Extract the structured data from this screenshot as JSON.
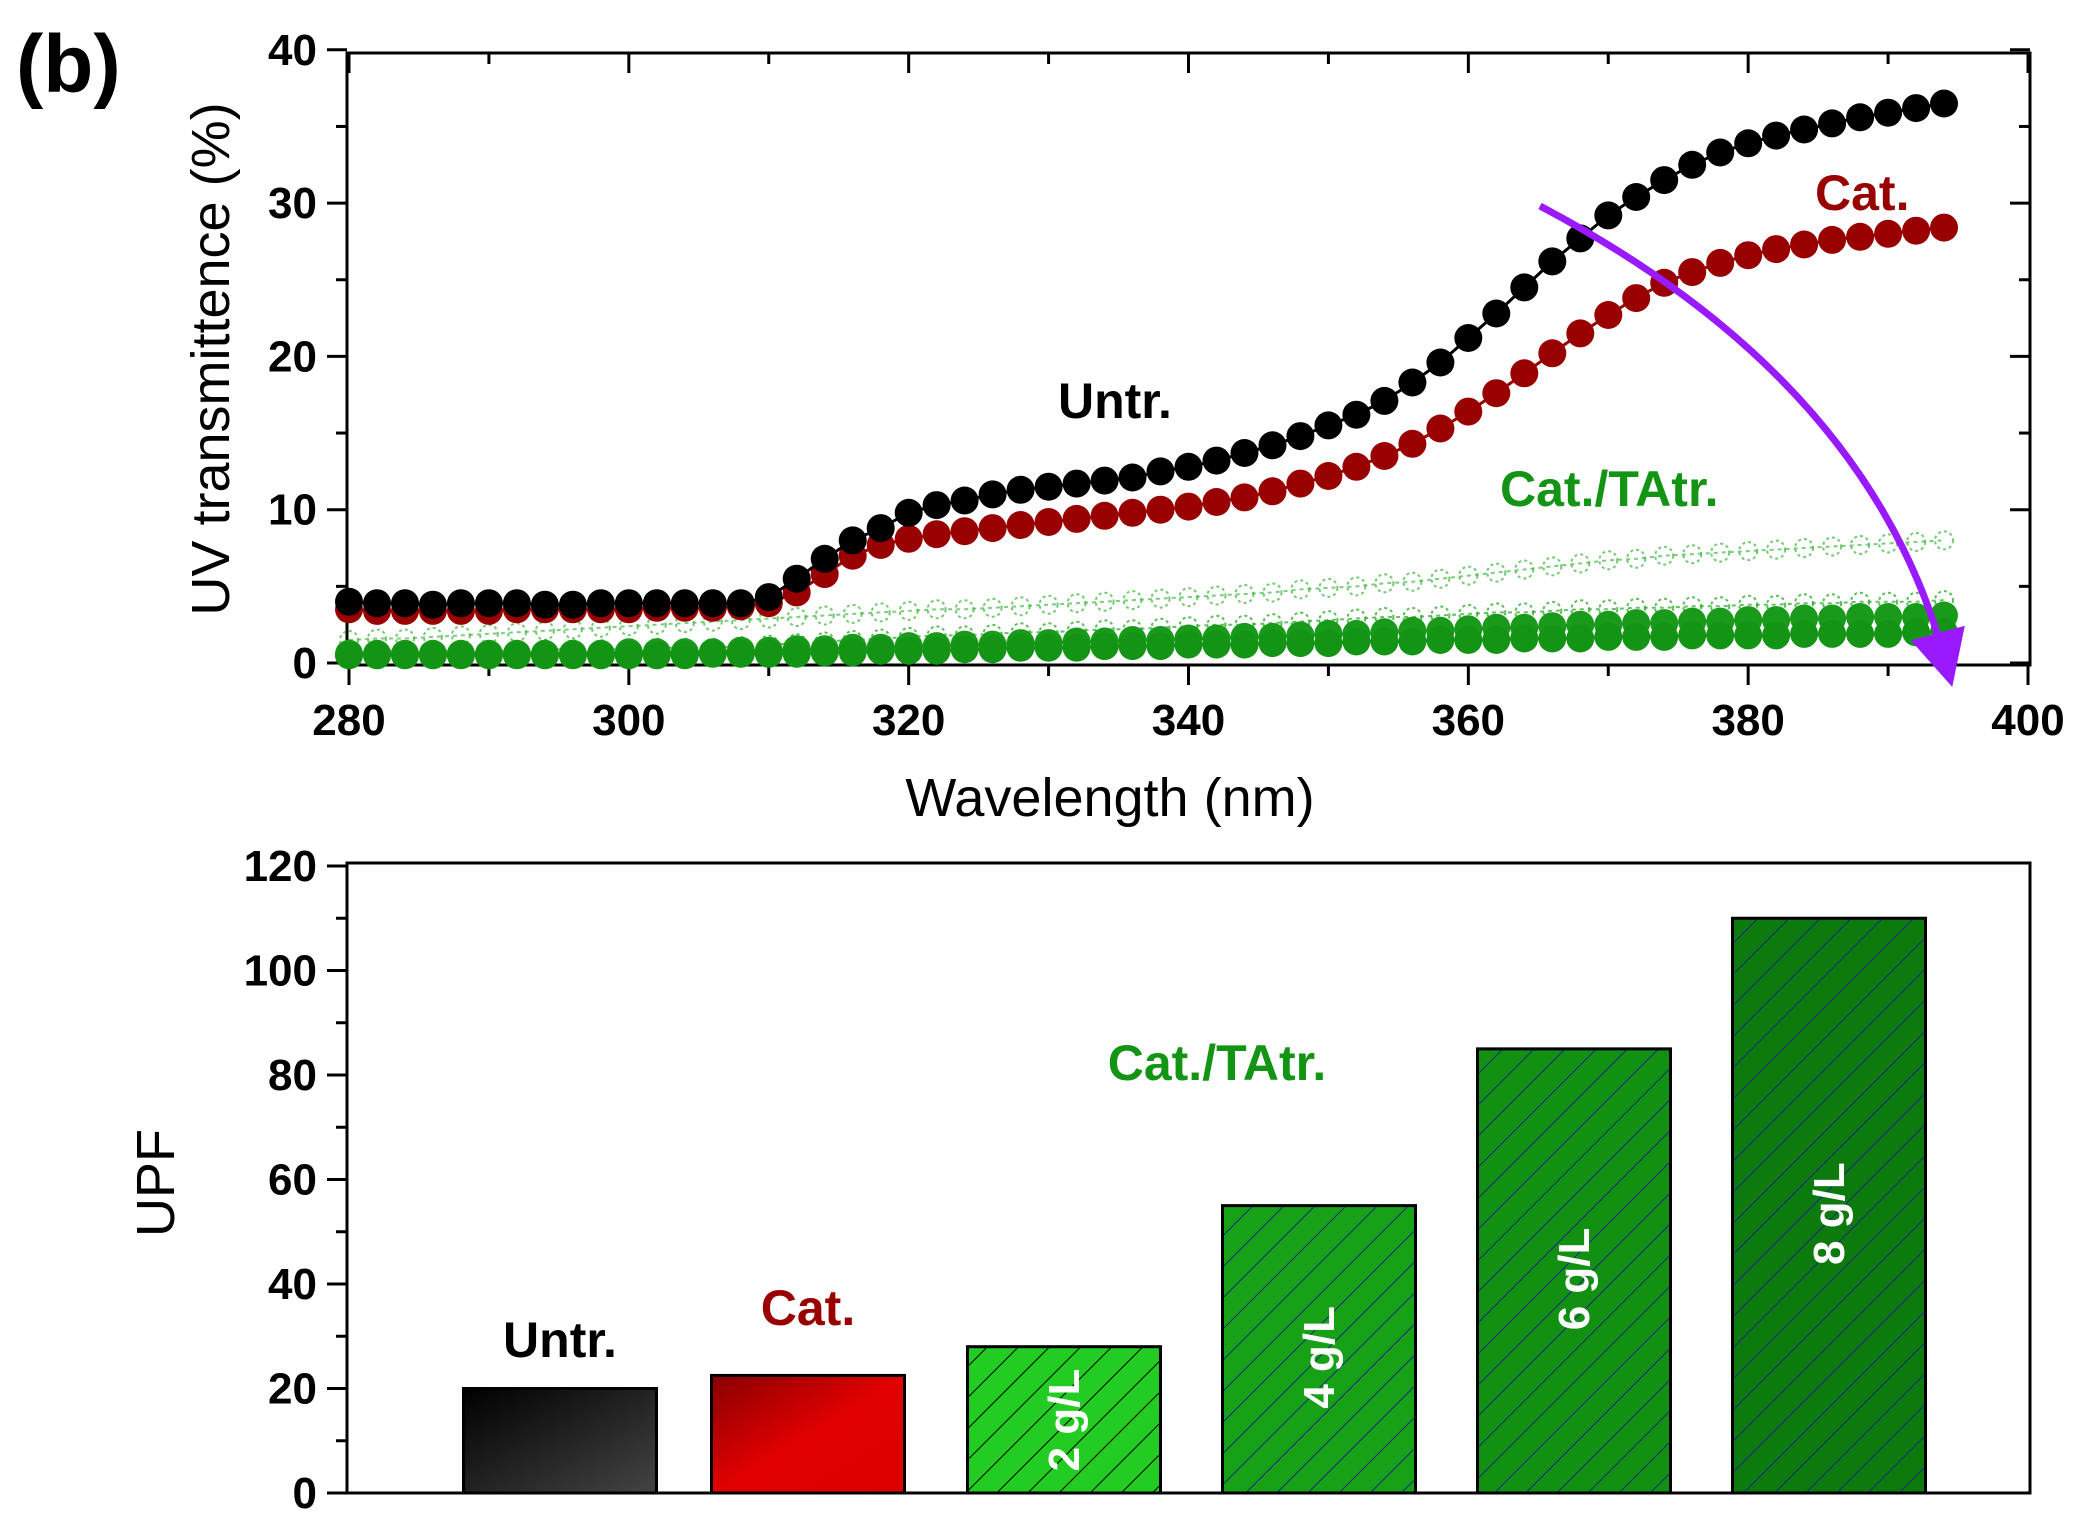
{
  "panel_label": "(b)",
  "chart_data": [
    {
      "type": "scatter",
      "xlabel": "Wavelength (nm)",
      "ylabel": "UV transmittence (%)",
      "xlim": [
        280,
        400
      ],
      "ylim": [
        0,
        40
      ],
      "xticks": [
        280,
        300,
        320,
        340,
        360,
        380,
        400
      ],
      "yticks": [
        0,
        10,
        20,
        30,
        40
      ],
      "series": [
        {
          "name": "Untr.",
          "color": "#000000",
          "x_start": 280,
          "x_step": 2,
          "values": [
            4.0,
            3.9,
            3.9,
            3.8,
            3.9,
            3.9,
            3.9,
            3.8,
            3.8,
            3.9,
            3.9,
            3.9,
            3.9,
            3.9,
            3.9,
            4.3,
            5.5,
            6.8,
            8.0,
            8.8,
            9.8,
            10.3,
            10.6,
            11.0,
            11.3,
            11.5,
            11.7,
            11.9,
            12.1,
            12.5,
            12.8,
            13.2,
            13.7,
            14.2,
            14.8,
            15.5,
            16.2,
            17.1,
            18.3,
            19.6,
            21.2,
            22.8,
            24.5,
            26.2,
            27.7,
            29.2,
            30.4,
            31.5,
            32.5,
            33.3,
            33.9,
            34.4,
            34.8,
            35.2,
            35.6,
            35.9,
            36.2,
            36.5
          ]
        },
        {
          "name": "Cat.",
          "color": "#990000",
          "x_start": 280,
          "x_step": 2,
          "values": [
            3.5,
            3.4,
            3.4,
            3.4,
            3.4,
            3.4,
            3.5,
            3.5,
            3.5,
            3.5,
            3.5,
            3.6,
            3.6,
            3.6,
            3.7,
            3.9,
            4.6,
            5.8,
            7.0,
            7.7,
            8.1,
            8.4,
            8.6,
            8.8,
            9.0,
            9.2,
            9.4,
            9.6,
            9.8,
            10.0,
            10.2,
            10.5,
            10.8,
            11.2,
            11.7,
            12.2,
            12.8,
            13.5,
            14.3,
            15.3,
            16.4,
            17.6,
            18.9,
            20.2,
            21.5,
            22.7,
            23.8,
            24.8,
            25.5,
            26.1,
            26.6,
            27.0,
            27.3,
            27.6,
            27.8,
            28.0,
            28.2,
            28.4
          ]
        },
        {
          "name": "Cat./TAtr. 8 g/L",
          "color": "#149414",
          "x_start": 280,
          "x_step": 2,
          "values": [
            0.5,
            0.5,
            0.5,
            0.5,
            0.5,
            0.5,
            0.5,
            0.5,
            0.5,
            0.5,
            0.5,
            0.5,
            0.5,
            0.6,
            0.6,
            0.6,
            0.6,
            0.7,
            0.7,
            0.8,
            0.8,
            0.8,
            0.9,
            0.9,
            1.0,
            1.0,
            1.0,
            1.1,
            1.1,
            1.1,
            1.2,
            1.2,
            1.2,
            1.3,
            1.3,
            1.3,
            1.4,
            1.4,
            1.4,
            1.5,
            1.5,
            1.5,
            1.6,
            1.6,
            1.6,
            1.7,
            1.7,
            1.7,
            1.8,
            1.8,
            1.8,
            1.8,
            1.9,
            1.9,
            1.9,
            1.9,
            2.0,
            2.0
          ]
        },
        {
          "name": "Cat./TAtr. 6 g/L",
          "color": "#1a9a1a",
          "x_start": 280,
          "x_step": 2,
          "values": [
            0.6,
            0.6,
            0.6,
            0.6,
            0.6,
            0.6,
            0.6,
            0.6,
            0.6,
            0.6,
            0.7,
            0.7,
            0.7,
            0.7,
            0.8,
            0.8,
            0.9,
            0.9,
            1.0,
            1.0,
            1.1,
            1.1,
            1.2,
            1.2,
            1.3,
            1.3,
            1.4,
            1.4,
            1.5,
            1.5,
            1.6,
            1.6,
            1.7,
            1.7,
            1.8,
            1.9,
            1.9,
            2.0,
            2.1,
            2.1,
            2.2,
            2.3,
            2.3,
            2.4,
            2.5,
            2.5,
            2.6,
            2.6,
            2.7,
            2.7,
            2.8,
            2.8,
            2.9,
            2.9,
            3.0,
            3.0,
            3.0,
            3.1
          ]
        },
        {
          "name": "Cat./TAtr. 4 g/L",
          "color": "#22a822",
          "x_start": 280,
          "x_step": 2,
          "values": [
            0.8,
            0.8,
            0.8,
            0.8,
            0.8,
            0.8,
            0.8,
            0.9,
            0.9,
            0.9,
            0.9,
            1.0,
            1.0,
            1.0,
            1.1,
            1.2,
            1.3,
            1.4,
            1.5,
            1.6,
            1.7,
            1.8,
            1.8,
            1.9,
            2.0,
            2.0,
            2.1,
            2.2,
            2.2,
            2.3,
            2.4,
            2.5,
            2.5,
            2.6,
            2.7,
            2.8,
            2.9,
            3.0,
            3.0,
            3.1,
            3.2,
            3.3,
            3.3,
            3.4,
            3.5,
            3.5,
            3.6,
            3.6,
            3.7,
            3.7,
            3.8,
            3.8,
            3.9,
            3.9,
            4.0,
            4.0,
            4.0,
            4.1
          ]
        },
        {
          "name": "Cat./TAtr. 2 g/L",
          "color": "#44b844",
          "x_start": 280,
          "x_step": 2,
          "values": [
            1.5,
            1.6,
            1.6,
            1.7,
            1.8,
            1.9,
            2.0,
            2.1,
            2.2,
            2.3,
            2.4,
            2.5,
            2.6,
            2.7,
            2.8,
            2.9,
            3.0,
            3.1,
            3.2,
            3.3,
            3.4,
            3.5,
            3.5,
            3.6,
            3.7,
            3.8,
            3.9,
            4.0,
            4.1,
            4.2,
            4.3,
            4.4,
            4.5,
            4.6,
            4.8,
            4.9,
            5.0,
            5.2,
            5.3,
            5.5,
            5.7,
            5.9,
            6.1,
            6.3,
            6.5,
            6.7,
            6.8,
            7.0,
            7.1,
            7.2,
            7.3,
            7.4,
            7.5,
            7.6,
            7.7,
            7.8,
            7.9,
            8.0
          ]
        }
      ],
      "annotations": {
        "untr": {
          "text": "Untr.",
          "color": "#000000"
        },
        "cat": {
          "text": "Cat.",
          "color": "#990000"
        },
        "cattatr": {
          "text": "Cat./TAtr.",
          "color": "#149414"
        },
        "arrow_color": "#9a1aff"
      }
    },
    {
      "type": "bar",
      "ylabel": "UPF",
      "ylim": [
        0,
        120
      ],
      "yticks": [
        0,
        20,
        40,
        60,
        80,
        100,
        120
      ],
      "categories": [
        "Untr.",
        "Cat.",
        "2 g/L",
        "4 g/L",
        "6 g/L",
        "8 g/L"
      ],
      "values": [
        20,
        22.5,
        28,
        55,
        85,
        110
      ],
      "colors": [
        "#111111",
        "#dd0000",
        "#22cc22",
        "#16a116",
        "#129012",
        "#0d7a0d"
      ],
      "labels_above": {
        "untr": "Untr.",
        "cat": "Cat."
      },
      "label_above_colors": {
        "untr": "#000000",
        "cat": "#990000"
      },
      "inside_labels": [
        "2 g/L",
        "4 g/L",
        "6 g/L",
        "8 g/L"
      ],
      "group_label": "Cat./TAtr.",
      "group_label_color": "#149414"
    }
  ]
}
